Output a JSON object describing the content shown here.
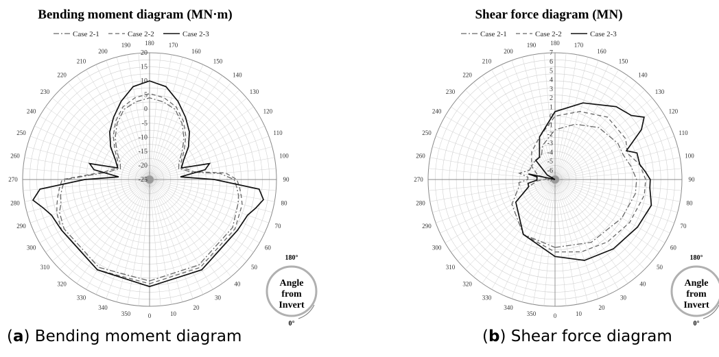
{
  "captions": [
    {
      "letter": "a",
      "text": ") Bending moment diagram"
    },
    {
      "letter": "b",
      "text": ") Shear force diagram"
    }
  ],
  "badge": {
    "line1": "Angle",
    "line2": "from",
    "line3": "Invert",
    "top": "180°",
    "bottom": "0°"
  },
  "chart_data": [
    {
      "type": "polar-line",
      "title": "Bending moment diagram (MN·m)",
      "angle_labels": [
        "0",
        "10",
        "20",
        "30",
        "40",
        "50",
        "60",
        "70",
        "80",
        "90",
        "100",
        "110",
        "120",
        "130",
        "140",
        "150",
        "160",
        "170",
        "180",
        "190",
        "200",
        "210",
        "220",
        "230",
        "240",
        "250",
        "260",
        "270",
        "280",
        "290",
        "300",
        "310",
        "320",
        "330",
        "340",
        "350"
      ],
      "radial_ticks": [
        -25,
        -20,
        -15,
        -10,
        -5,
        0,
        5,
        10,
        15,
        20
      ],
      "rlim": [
        -25,
        20
      ],
      "series": [
        {
          "name": "Case 2-1",
          "dash": "dashdot",
          "angles": [
            0,
            30,
            60,
            75,
            80,
            85,
            90,
            95,
            100,
            105,
            110,
            120,
            130,
            140,
            150,
            160,
            170,
            180,
            190,
            200,
            210,
            220,
            230,
            240,
            250,
            255,
            260,
            265,
            270,
            275,
            280,
            285,
            290,
            300,
            330
          ],
          "values": [
            11,
            10,
            9,
            7.5,
            7,
            6,
            5,
            0,
            -10,
            -12,
            -14,
            -13,
            -10,
            -6,
            -2,
            1.5,
            3,
            4,
            3,
            1.5,
            -2,
            -6,
            -10,
            -13,
            -14,
            -12,
            -10,
            -5,
            5,
            6,
            7,
            7.5,
            9,
            10,
            11
          ]
        },
        {
          "name": "Case 2-2",
          "dash": "dashed",
          "angles": [
            0,
            30,
            60,
            75,
            80,
            85,
            90,
            95,
            100,
            105,
            110,
            120,
            130,
            140,
            150,
            160,
            170,
            180,
            190,
            200,
            210,
            220,
            230,
            240,
            250,
            255,
            260,
            265,
            270,
            275,
            280,
            285,
            290,
            300,
            330
          ],
          "values": [
            12,
            11,
            10,
            9,
            8,
            7,
            6,
            2,
            -9,
            -11,
            -13,
            -12,
            -9,
            -5,
            -1,
            2.5,
            4.5,
            5.5,
            4.5,
            2.5,
            -1,
            -5,
            -9,
            -12,
            -13,
            -11,
            -9,
            -4,
            6,
            7,
            8,
            9,
            10,
            11,
            12
          ]
        },
        {
          "name": "Case 2-3",
          "dash": "solid",
          "angles": [
            0,
            30,
            60,
            70,
            75,
            80,
            85,
            90,
            95,
            100,
            105,
            110,
            120,
            130,
            140,
            150,
            160,
            170,
            180,
            190,
            200,
            210,
            220,
            230,
            240,
            250,
            255,
            260,
            265,
            270,
            275,
            280,
            285,
            290,
            300,
            330
          ],
          "values": [
            13,
            12,
            11,
            12,
            14,
            16,
            14,
            -2,
            -14,
            -5,
            -3,
            -13,
            -11,
            -7,
            -3,
            0.5,
            4.5,
            8.5,
            10,
            8.5,
            4.5,
            0.5,
            -3,
            -7,
            -11,
            -13,
            -3,
            -5,
            -14,
            -2,
            14,
            17,
            14,
            12,
            11,
            12
          ]
        }
      ]
    },
    {
      "type": "polar-line",
      "title": "Shear force diagram (MN)",
      "angle_labels": [
        "0",
        "10",
        "20",
        "30",
        "40",
        "50",
        "60",
        "70",
        "80",
        "90",
        "100",
        "110",
        "120",
        "130",
        "140",
        "150",
        "160",
        "170",
        "180",
        "190",
        "200",
        "210",
        "220",
        "230",
        "240",
        "250",
        "260",
        "270",
        "280",
        "290",
        "300",
        "310",
        "320",
        "330",
        "340",
        "350"
      ],
      "radial_ticks": [
        -7,
        -6,
        -5,
        -4,
        -3,
        -2,
        -1,
        0,
        1,
        2,
        3,
        4,
        5,
        6,
        7
      ],
      "rlim": [
        -7,
        7
      ],
      "series": [
        {
          "name": "Case 2-1",
          "dash": "dashdot",
          "angles": [
            0,
            30,
            60,
            80,
            90,
            100,
            110,
            120,
            140,
            160,
            180,
            200,
            210,
            230,
            250,
            260,
            265,
            270,
            275,
            280,
            300,
            330
          ],
          "values": [
            0.5,
            1,
            1.5,
            2,
            2,
            1.5,
            1,
            1,
            0.5,
            -0.5,
            -1.5,
            -3,
            -4,
            -4,
            -4,
            -3,
            -4,
            -4,
            -3,
            -3,
            -1.5,
            0
          ]
        },
        {
          "name": "Case 2-2",
          "dash": "dashed",
          "angles": [
            0,
            20,
            40,
            60,
            80,
            90,
            100,
            110,
            120,
            140,
            160,
            180,
            200,
            220,
            240,
            255,
            262,
            268,
            275,
            285,
            300,
            330
          ],
          "values": [
            1,
            1.5,
            2,
            2.5,
            3,
            3,
            2.5,
            1.5,
            2,
            2,
            1,
            0,
            -2,
            -3,
            -4,
            -5,
            -6,
            -6,
            -5,
            -4,
            -2,
            0
          ]
        },
        {
          "name": "Case 2-3",
          "dash": "solid",
          "angles": [
            0,
            20,
            40,
            60,
            75,
            85,
            90,
            95,
            100,
            108,
            112,
            120,
            125,
            130,
            140,
            160,
            180,
            200,
            215,
            225,
            240,
            250,
            255,
            258,
            262,
            268,
            272,
            278,
            285,
            300,
            330
          ],
          "values": [
            1.5,
            2.5,
            3,
            3.5,
            4,
            3.5,
            3.5,
            3,
            2.5,
            2.5,
            1.5,
            4,
            5,
            4,
            3.5,
            2,
            0.5,
            -2,
            -4,
            -4,
            -6,
            -7,
            -7,
            -4,
            -5,
            -5,
            -5,
            -4,
            -4,
            -2,
            0
          ]
        }
      ]
    }
  ]
}
